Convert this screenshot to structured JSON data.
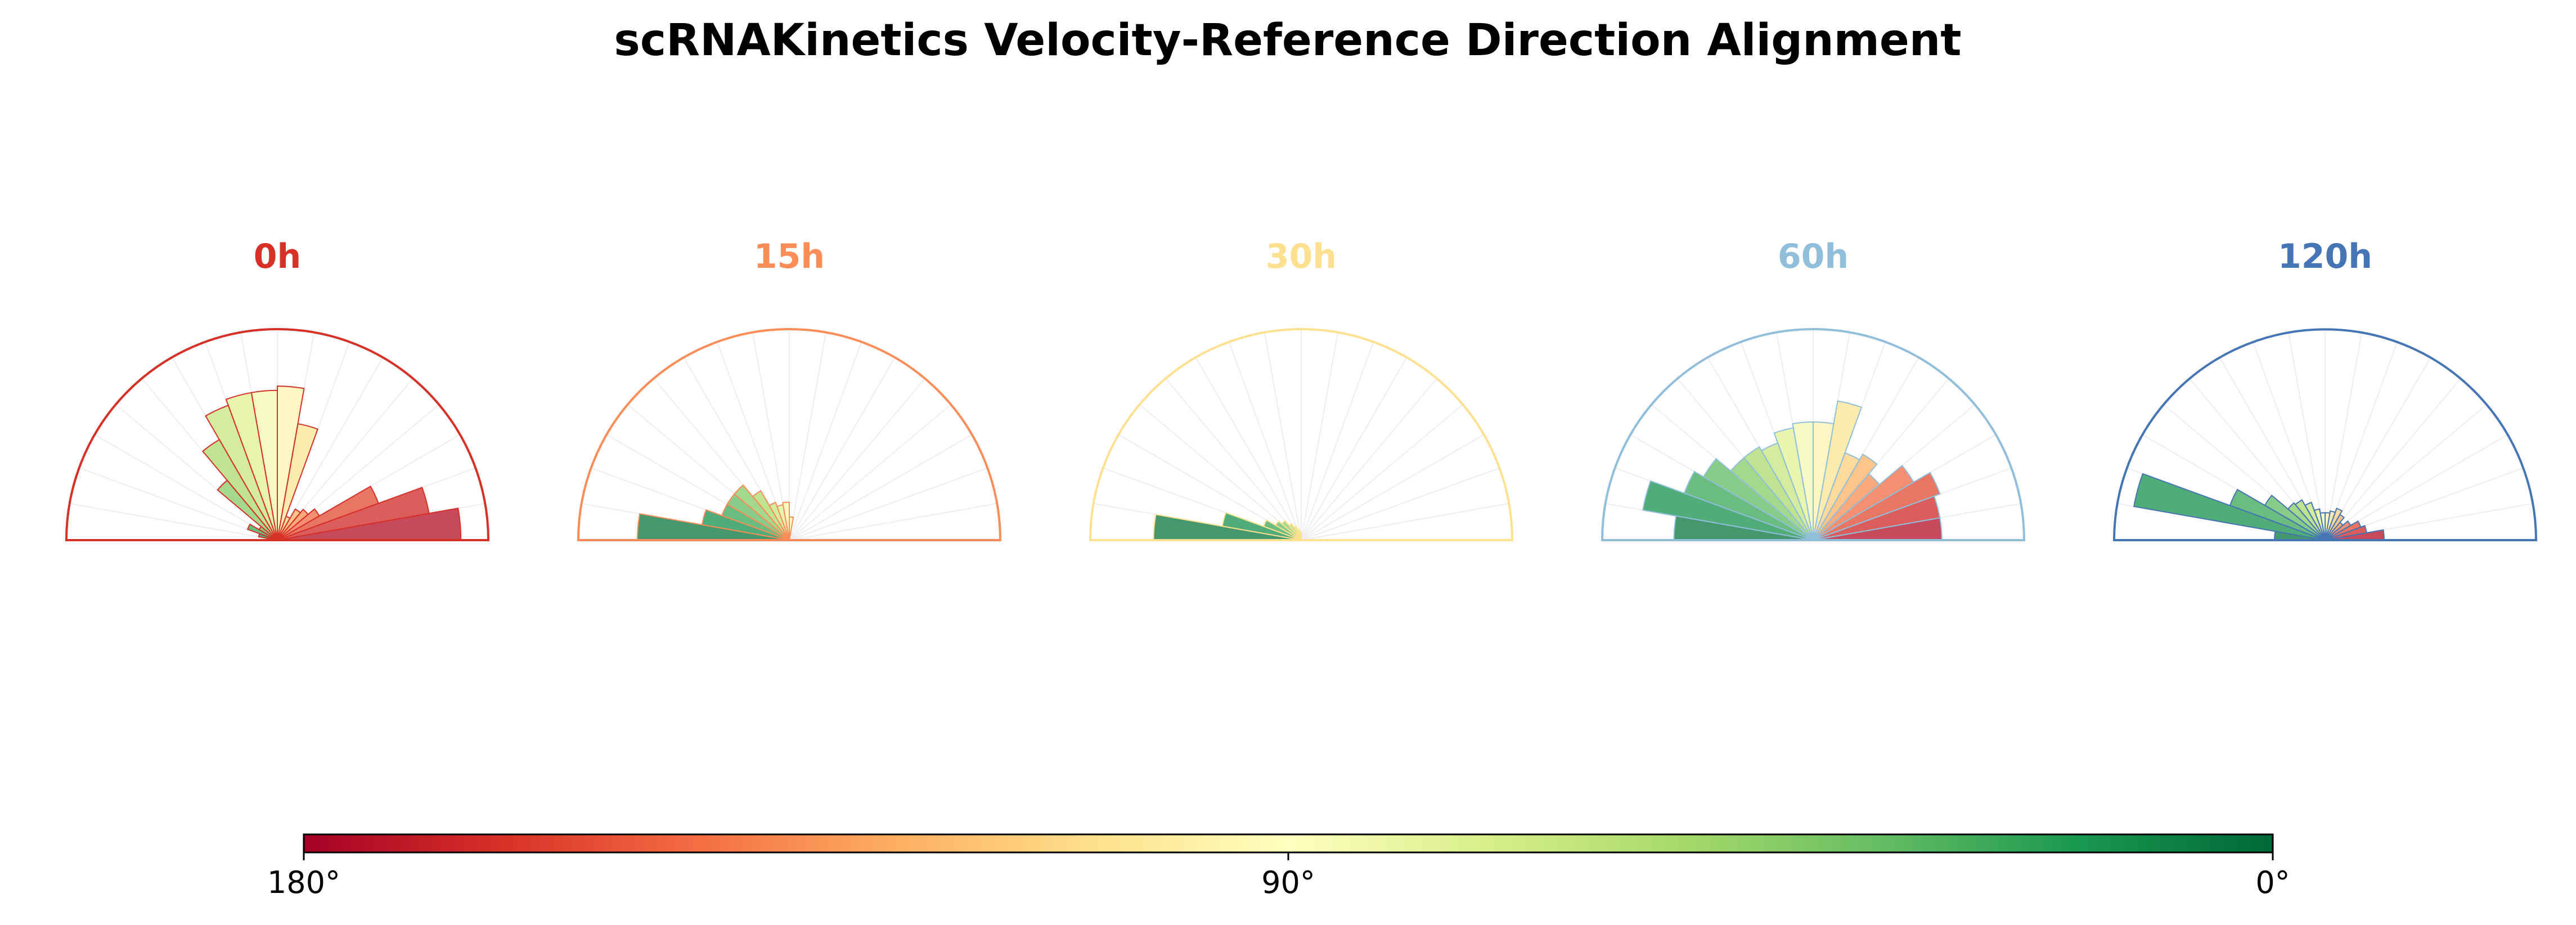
{
  "chart_data": {
    "type": "polar-histogram",
    "title": "scRNAKinetics Velocity-Reference Direction Alignment",
    "angle_range_deg": [
      0,
      180
    ],
    "bin_width_deg": 10,
    "bin_centers_deg": [
      5,
      15,
      25,
      35,
      45,
      55,
      65,
      75,
      85,
      95,
      105,
      115,
      125,
      135,
      145,
      155,
      165,
      175
    ],
    "panels": [
      {
        "label": "0h",
        "color": "#d73027",
        "values": [
          0.87,
          0.73,
          0.51,
          0.23,
          0.19,
          0.17,
          0.12,
          0.56,
          0.73,
          0.71,
          0.71,
          0.68,
          0.55,
          0.37,
          0.1,
          0.15,
          0.09,
          0.05
        ]
      },
      {
        "label": "15h",
        "color": "#fc8d59",
        "values": [
          0,
          0,
          0,
          0,
          0,
          0,
          0,
          0,
          0.11,
          0.18,
          0.17,
          0.19,
          0.27,
          0.34,
          0.34,
          0.34,
          0.42,
          0.72
        ]
      },
      {
        "label": "30h",
        "color": "#fee090",
        "values": [
          0,
          0,
          0,
          0,
          0,
          0,
          0,
          0,
          0,
          0.04,
          0.05,
          0.07,
          0.09,
          0.12,
          0.14,
          0.19,
          0.38,
          0.7
        ]
      },
      {
        "label": "60h",
        "color": "#91bfdb",
        "values": [
          0.61,
          0.61,
          0.64,
          0.55,
          0.41,
          0.47,
          0.44,
          0.67,
          0.56,
          0.56,
          0.54,
          0.49,
          0.51,
          0.51,
          0.6,
          0.65,
          0.82,
          0.66
        ]
      },
      {
        "label": "120h",
        "color": "#4575b4",
        "values": [
          0.28,
          0.2,
          0.18,
          0.14,
          0.11,
          0.14,
          0.16,
          0.14,
          0.13,
          0.13,
          0.15,
          0.19,
          0.22,
          0.23,
          0.33,
          0.48,
          0.92,
          0.24
        ]
      }
    ],
    "colorbar": {
      "colormap": "RdYlGn",
      "range_deg": [
        180,
        0
      ],
      "ticks": [
        {
          "value": 180,
          "label": "180°"
        },
        {
          "value": 90,
          "label": "90°"
        },
        {
          "value": 0,
          "label": "0°"
        }
      ]
    }
  }
}
